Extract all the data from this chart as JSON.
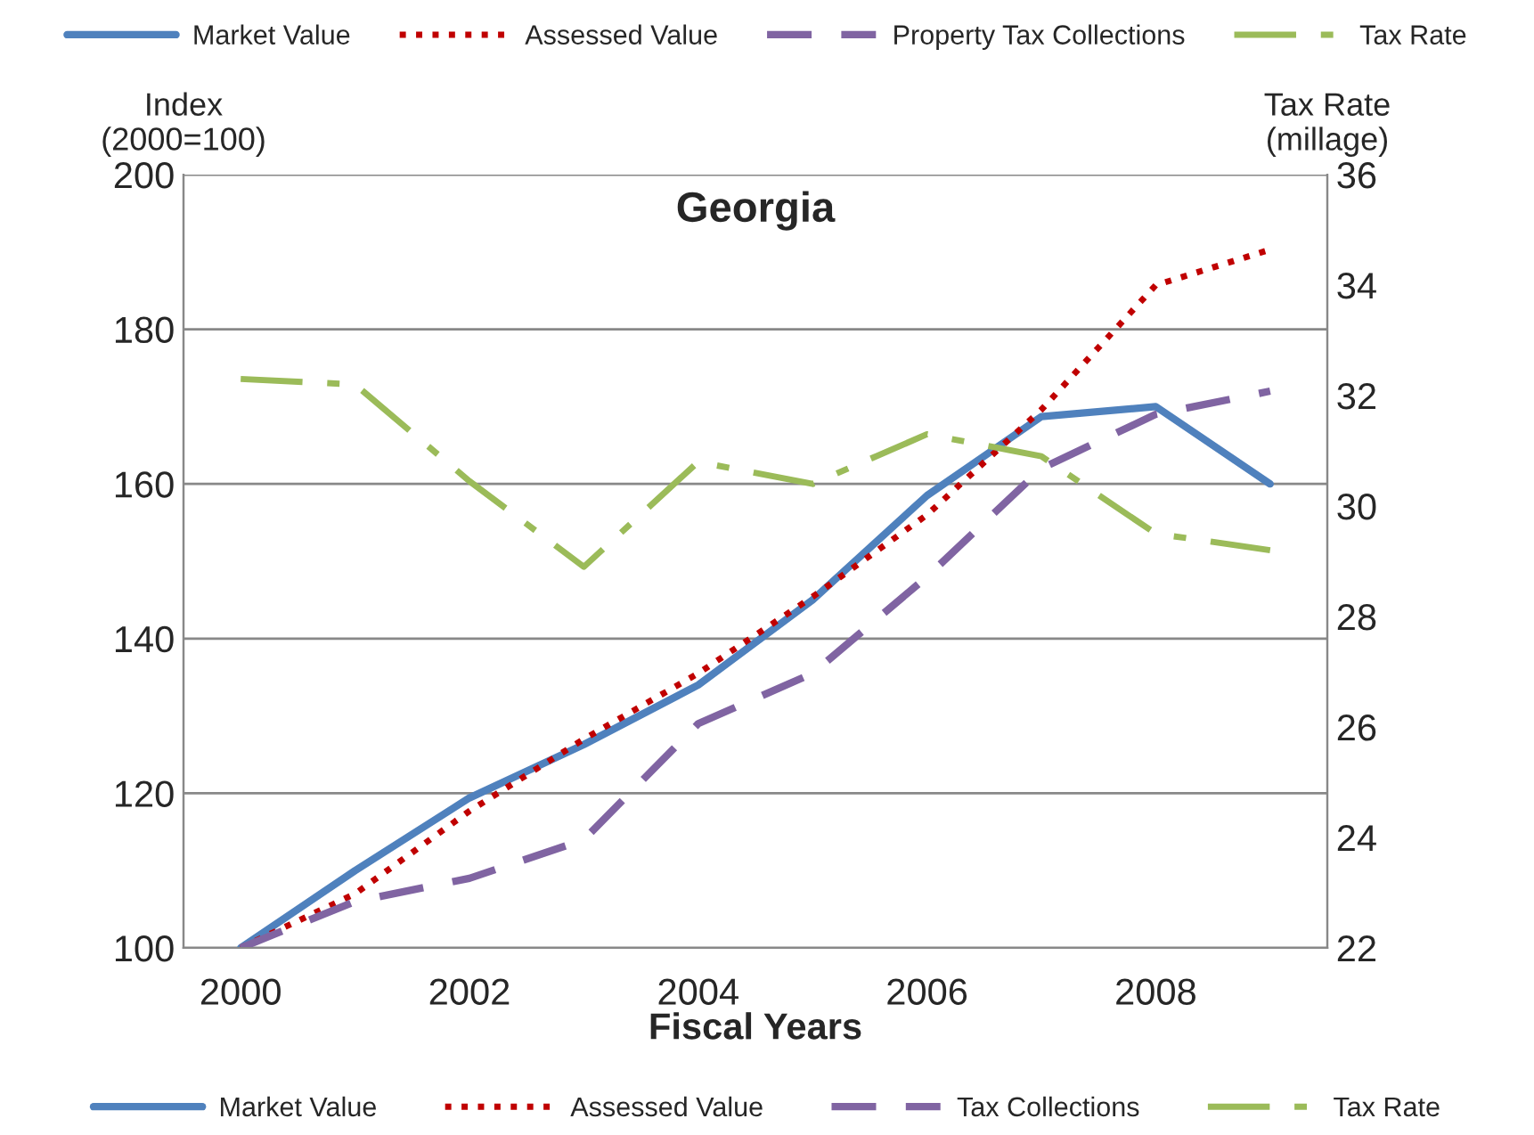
{
  "chart_data": {
    "type": "line",
    "title": "Georgia",
    "xlabel": "Fiscal Years",
    "ylabel": "Index\n(2000=100)",
    "y2label": "Tax Rate\n(millage)",
    "categories": [
      "2000",
      null,
      "2002",
      null,
      "2004",
      null,
      "2006",
      null,
      "2008",
      null
    ],
    "series": [
      {
        "name": "Market Value",
        "color": "#4f81bd",
        "line_style": "solid",
        "values": [
          100,
          110,
          119.4,
          126.3,
          134,
          145,
          158.5,
          168.7,
          170,
          160
        ]
      },
      {
        "name": "Assessed Value",
        "color": "#c00000",
        "line_style": "dotted",
        "values": [
          100,
          107,
          117.7,
          127,
          135.5,
          145.4,
          156,
          169.6,
          185.7,
          190.3
        ]
      },
      {
        "name": "Tax Collections",
        "color": "#8064a2",
        "line_style": "dashed",
        "values": [
          100,
          106,
          109,
          114,
          129,
          135.5,
          148,
          162,
          169,
          172
        ]
      },
      {
        "name": "Tax Rate",
        "color": "#9bbb59",
        "line_style": "dashdot",
        "axis": "y2",
        "values": [
          32.3,
          32.2,
          30.45,
          28.9,
          30.8,
          30.4,
          31.3,
          30.9,
          29.5,
          29.2
        ]
      }
    ],
    "annotations": [
      "Market Value",
      "Assessed Value",
      "Property Tax Collections",
      "Tax Rate"
    ],
    "ylim": [
      100,
      200
    ],
    "yticks": [
      100,
      120,
      140,
      160,
      180,
      200
    ],
    "y2lim": [
      22,
      36
    ],
    "y2ticks": [
      22,
      24,
      26,
      28,
      30,
      32,
      34,
      36
    ],
    "grid": "y",
    "legend": "bottom"
  }
}
